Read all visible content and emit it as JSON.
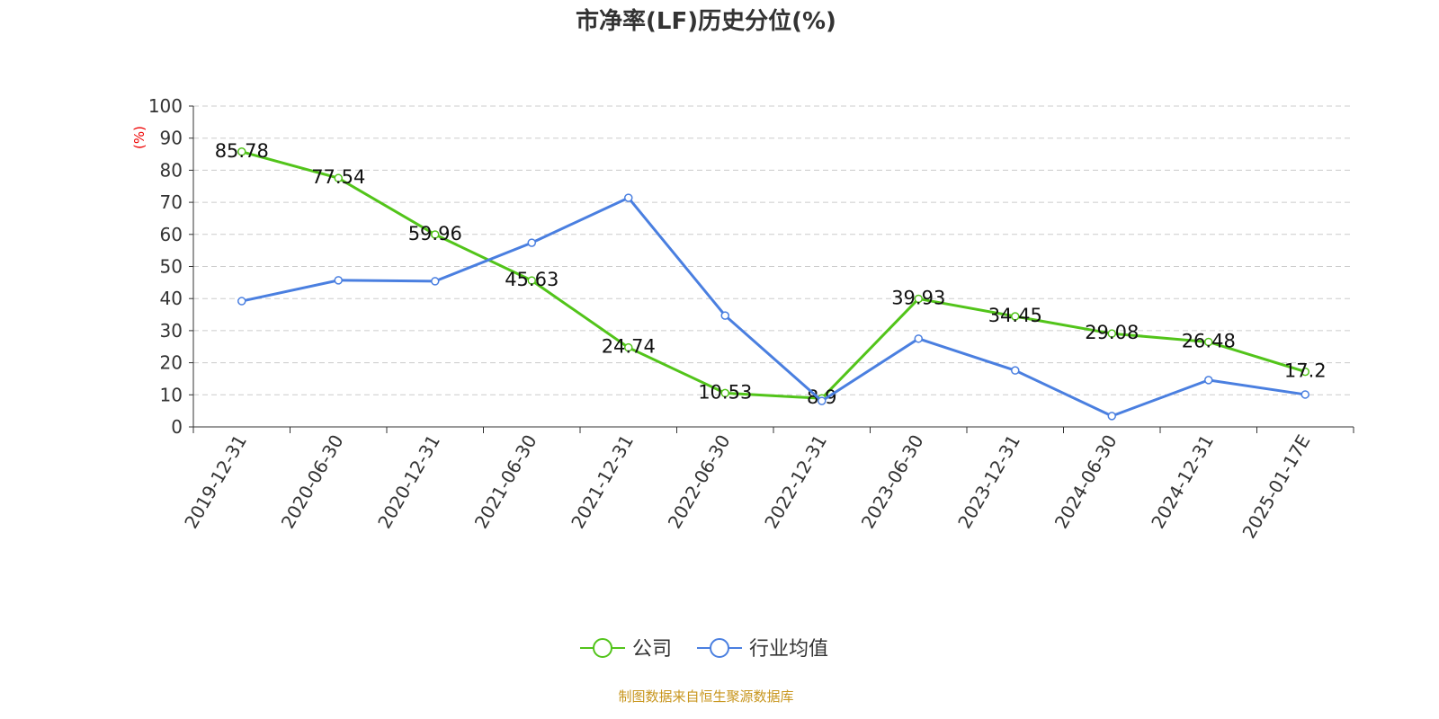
{
  "chart_data": {
    "type": "line",
    "title": "市净率(LF)历史分位(%)",
    "ylabel": "(%)",
    "xlabel": "",
    "ylim": [
      0,
      100
    ],
    "yticks": [
      0,
      10,
      20,
      30,
      40,
      50,
      60,
      70,
      80,
      90,
      100
    ],
    "grid": true,
    "legend_position": "bottom",
    "categories": [
      "2019-12-31",
      "2020-06-30",
      "2020-12-31",
      "2021-06-30",
      "2021-12-31",
      "2022-06-30",
      "2022-12-31",
      "2023-06-30",
      "2023-12-31",
      "2024-06-30",
      "2024-12-31",
      "2025-01-17E"
    ],
    "series": [
      {
        "name": "公司",
        "color": "#52c41a",
        "values": [
          85.78,
          77.54,
          59.96,
          45.63,
          24.74,
          10.53,
          8.9,
          39.93,
          34.45,
          29.08,
          26.48,
          17.2
        ],
        "labels": true
      },
      {
        "name": "行业均值",
        "color": "#4a7fe0",
        "values": [
          39.2,
          45.7,
          45.4,
          57.4,
          71.4,
          34.7,
          8.1,
          27.5,
          17.6,
          3.4,
          14.6,
          10.1
        ],
        "labels": false
      }
    ],
    "source": "制图数据来自恒生聚源数据库"
  }
}
